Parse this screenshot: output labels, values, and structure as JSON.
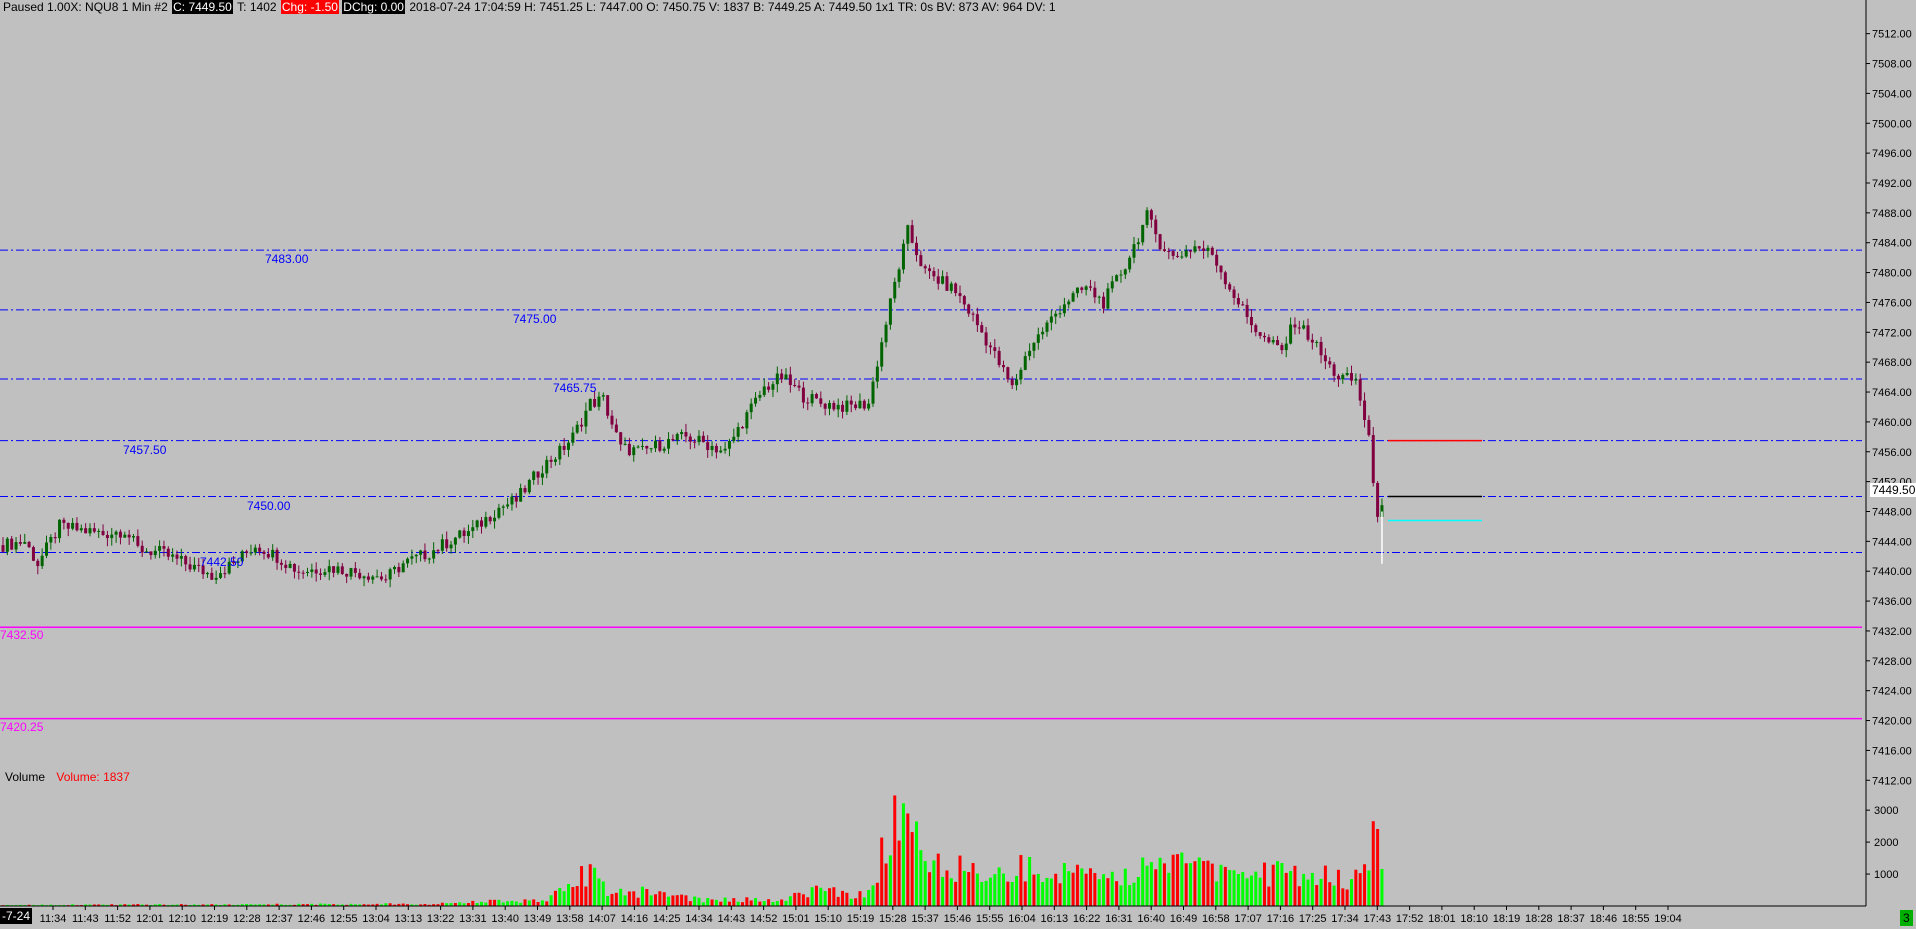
{
  "header": {
    "status": "Paused 1.00X: NQU8  1 Min  #2",
    "close": "C: 7449.50",
    "ticks": "T: 1402",
    "change": "Chg: -1.50",
    "dchange": "DChg: 0.00",
    "detail": "2018-07-24 17:04:59 H: 7451.25 L: 7447.00 O: 7450.75 V: 1837 B: 7449.25 A: 7449.50 1x1 TR: 0s BV: 873 AV: 964 DV: 1"
  },
  "volume_header": {
    "label": "Volume",
    "value": "Volume: 1837"
  },
  "current_price_label": "7449.50",
  "date_label": "-7-24",
  "corner_badge": "3",
  "colors": {
    "background": "#c0c0c0",
    "up_candle": "#006400",
    "down_candle": "#800040",
    "volume_up": "#00ff00",
    "volume_down": "#ff0000",
    "level_line": "#0000ff",
    "magenta_line": "#ff00ff"
  },
  "chart_data": [
    {
      "type": "candlestick",
      "title": "",
      "y_ticks": [
        "7512.00",
        "7508.00",
        "7504.00",
        "7500.00",
        "7496.00",
        "7492.00",
        "7488.00",
        "7484.00",
        "7480.00",
        "7476.00",
        "7472.00",
        "7468.00",
        "7464.00",
        "7460.00",
        "7456.00",
        "7452.00",
        "7448.00",
        "7444.00",
        "7440.00",
        "7436.00",
        "7432.00",
        "7428.00",
        "7424.00",
        "7420.00",
        "7416.00",
        "7412.00"
      ],
      "ylim": [
        7411.5,
        7514.5
      ],
      "x_ticks": [
        "11:34",
        "11:43",
        "11:52",
        "12:01",
        "12:10",
        "12:19",
        "12:28",
        "12:37",
        "12:46",
        "12:55",
        "13:04",
        "13:13",
        "13:22",
        "13:31",
        "13:40",
        "13:49",
        "13:58",
        "14:07",
        "14:16",
        "14:25",
        "14:34",
        "14:43",
        "14:52",
        "15:01",
        "15:10",
        "15:19",
        "15:28",
        "15:37",
        "15:46",
        "15:55",
        "16:04",
        "16:13",
        "16:22",
        "16:31",
        "16:40",
        "16:49",
        "16:58",
        "17:07",
        "17:16",
        "17:25",
        "17:34",
        "17:43",
        "17:52",
        "18:01",
        "18:10",
        "18:19",
        "18:28",
        "18:37",
        "18:46",
        "18:55",
        "19:04"
      ],
      "price_path": [
        [
          0,
          7443.5
        ],
        [
          5,
          7444
        ],
        [
          8,
          7441
        ],
        [
          13,
          7446
        ],
        [
          18,
          7445.5
        ],
        [
          23,
          7445
        ],
        [
          28,
          7445.5
        ],
        [
          31,
          7443
        ],
        [
          36,
          7442.5
        ],
        [
          42,
          7441
        ],
        [
          48,
          7439.5
        ],
        [
          53,
          7441
        ],
        [
          58,
          7443.5
        ],
        [
          63,
          7442
        ],
        [
          68,
          7440
        ],
        [
          75,
          7440.5
        ],
        [
          80,
          7440
        ],
        [
          85,
          7439.5
        ],
        [
          88,
          7439
        ],
        [
          92,
          7441
        ],
        [
          98,
          7442.5
        ],
        [
          104,
          7444.5
        ],
        [
          108,
          7445.5
        ],
        [
          114,
          7448.5
        ],
        [
          118,
          7449.5
        ],
        [
          124,
          7454
        ],
        [
          128,
          7456
        ],
        [
          131,
          7458
        ],
        [
          135,
          7462.5
        ],
        [
          138,
          7463
        ],
        [
          142,
          7456.5
        ],
        [
          147,
          7456
        ],
        [
          151,
          7457
        ],
        [
          157,
          7458
        ],
        [
          162,
          7457
        ],
        [
          166,
          7456
        ],
        [
          170,
          7460
        ],
        [
          175,
          7464.5
        ],
        [
          179,
          7466
        ],
        [
          184,
          7463.5
        ],
        [
          188,
          7462.5
        ],
        [
          194,
          7462
        ],
        [
          199,
          7462.5
        ],
        [
          201,
          7468
        ],
        [
          205,
          7478.5
        ],
        [
          208,
          7485.5
        ],
        [
          212,
          7480
        ],
        [
          215,
          7479
        ],
        [
          219,
          7477.5
        ],
        [
          223,
          7474
        ],
        [
          227,
          7470
        ],
        [
          232,
          7464.5
        ],
        [
          236,
          7470
        ],
        [
          240,
          7473
        ],
        [
          244,
          7476
        ],
        [
          249,
          7478
        ],
        [
          253,
          7476
        ],
        [
          258,
          7481
        ],
        [
          263,
          7487.5
        ],
        [
          266,
          7484
        ],
        [
          269,
          7482
        ],
        [
          274,
          7483.5
        ],
        [
          278,
          7482.5
        ],
        [
          282,
          7478
        ],
        [
          286,
          7474
        ],
        [
          290,
          7471
        ],
        [
          294,
          7469.5
        ],
        [
          297,
          7473.5
        ],
        [
          301,
          7471
        ],
        [
          304,
          7468
        ],
        [
          307,
          7466
        ],
        [
          311,
          7465.5
        ],
        [
          314,
          7458
        ],
        [
          315,
          7451
        ],
        [
          316,
          7448
        ],
        [
          317,
          7449.5
        ]
      ],
      "horizontal_levels": [
        {
          "label": "7483.00",
          "value": 7483.0
        },
        {
          "label": "7475.00",
          "value": 7475.0
        },
        {
          "label": "7465.75",
          "value": 7465.75
        },
        {
          "label": "7457.50",
          "value": 7457.5
        },
        {
          "label": "7450.00",
          "value": 7450.0
        },
        {
          "label": "7442.50",
          "value": 7442.5
        }
      ],
      "magenta_levels": [
        {
          "label": "7432.50",
          "value": 7432.5
        },
        {
          "label": "7420.25",
          "value": 7420.25
        }
      ],
      "marker_lines": [
        {
          "value": 7457.5,
          "color": "#ff0000"
        },
        {
          "value": 7450.0,
          "color": "#000000"
        },
        {
          "value": 7446.8,
          "color": "#00ffff"
        }
      ]
    },
    {
      "type": "bar",
      "title": "",
      "series_name": "Volume",
      "y_ticks": [
        "3000",
        "2000",
        "1000"
      ],
      "ylim": [
        0,
        4100
      ],
      "volume_path": [
        [
          0,
          40
        ],
        [
          60,
          60
        ],
        [
          100,
          70
        ],
        [
          112,
          180
        ],
        [
          124,
          170
        ],
        [
          135,
          1150
        ],
        [
          140,
          400
        ],
        [
          150,
          500
        ],
        [
          160,
          200
        ],
        [
          180,
          230
        ],
        [
          187,
          600
        ],
        [
          195,
          400
        ],
        [
          200,
          500
        ],
        [
          203,
          2300
        ],
        [
          206,
          3300
        ],
        [
          208,
          2500
        ],
        [
          212,
          1600
        ],
        [
          218,
          1400
        ],
        [
          224,
          1100
        ],
        [
          232,
          1300
        ],
        [
          240,
          1200
        ],
        [
          248,
          1250
        ],
        [
          256,
          1100
        ],
        [
          264,
          1300
        ],
        [
          272,
          1350
        ],
        [
          280,
          1150
        ],
        [
          288,
          1050
        ],
        [
          296,
          1100
        ],
        [
          304,
          1000
        ],
        [
          310,
          800
        ],
        [
          314,
          1700
        ],
        [
          315,
          3700
        ],
        [
          316,
          1900
        ]
      ]
    }
  ]
}
